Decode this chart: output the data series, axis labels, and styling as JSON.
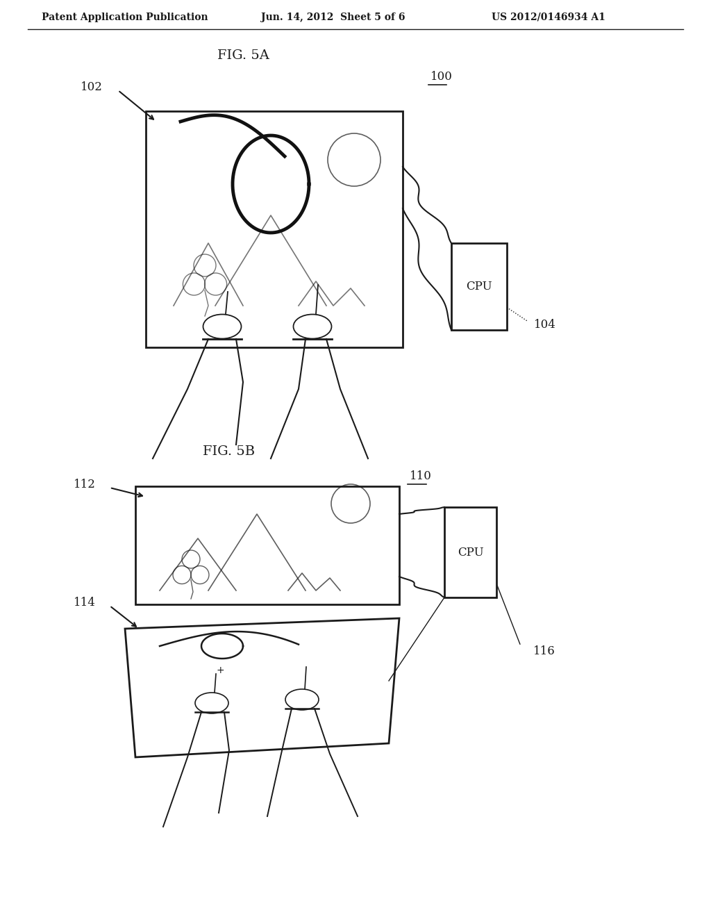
{
  "background_color": "#ffffff",
  "header_text": "Patent Application Publication",
  "header_date": "Jun. 14, 2012  Sheet 5 of 6",
  "header_patent": "US 2012/0146934 A1",
  "fig5a_label": "FIG. 5A",
  "fig5b_label": "FIG. 5B",
  "label_100": "100",
  "label_102": "102",
  "label_104": "104",
  "label_110": "110",
  "label_112": "112",
  "label_114": "114",
  "label_116": "116",
  "cpu_label": "CPU",
  "line_color": "#1a1a1a",
  "text_color": "#1a1a1a"
}
